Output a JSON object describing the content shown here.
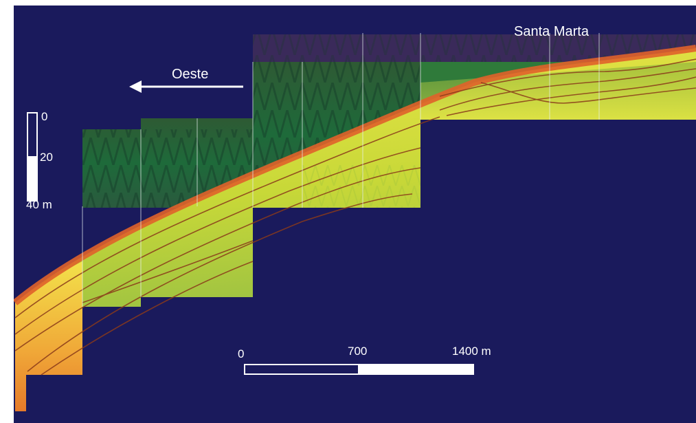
{
  "figure": {
    "place_label": "Santa Marta",
    "direction_label": "Oeste",
    "vertical_scale": {
      "ticks": [
        "0",
        "20",
        "40 m"
      ]
    },
    "horizontal_scale": {
      "ticks": [
        "0",
        "700",
        "1400 m"
      ]
    },
    "colors": {
      "background": "#1a1a5c",
      "frame": "#ffffff",
      "low_amplitude": "#1f6b3a",
      "mid_amplitude": "#d8e23a",
      "high_amplitude": "#e0622a",
      "reflector_lines": "#8a3a1a"
    }
  }
}
